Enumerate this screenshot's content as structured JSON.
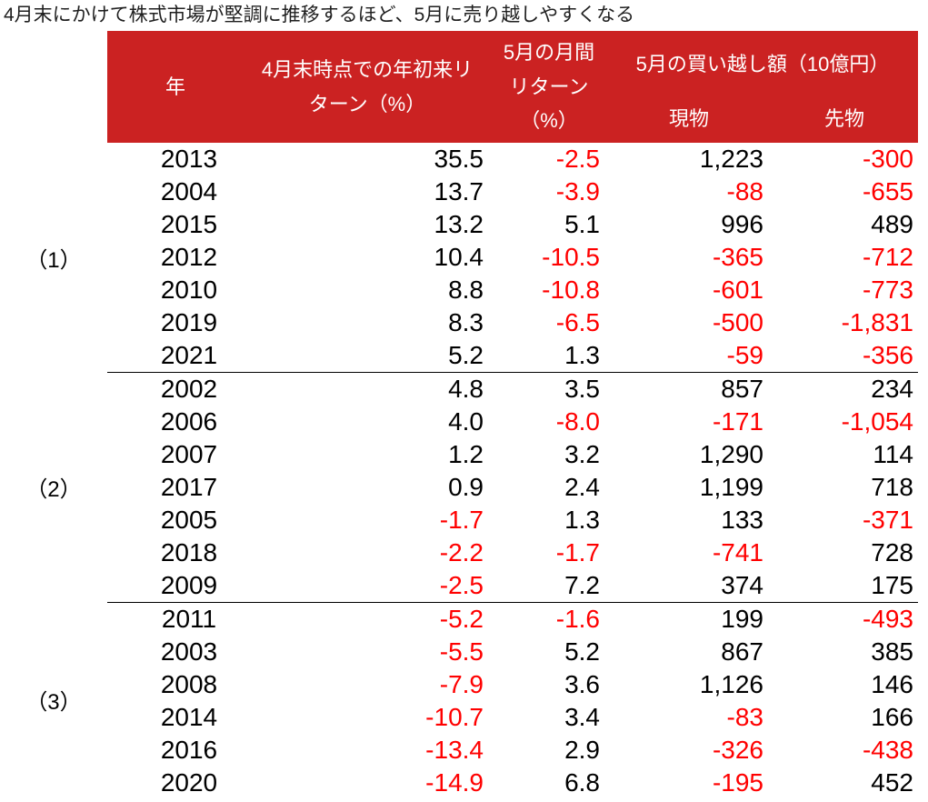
{
  "colors": {
    "header_bg": "#CB2222",
    "header_text": "#FFFFFF",
    "negative_value": "#FF0000",
    "positive_value": "#000000",
    "group_separator": "#000000"
  },
  "chart_data": {
    "type": "table",
    "title": "4月末にかけて株式市場が堅調に推移するほど、5月に売り越しやすくなる",
    "columns": [
      "年",
      "4月末時点での年初来リターン（%）",
      "5月の月間リターン（%）",
      "5月の買い越し額（10億円） 現物",
      "5月の買い越し額（10億円） 先物"
    ],
    "header": {
      "year": "年",
      "ytd_return": "4月末時点での年初来リ\nターン（%）",
      "may_return": "5月の月間\nリターン\n（%）",
      "net_buying": "5月の買い越し額（10億円）",
      "spot": "現物",
      "futures": "先物"
    },
    "layout": {
      "negative_values_in_red": true,
      "groups_separated_by_line": true
    },
    "groups": [
      {
        "label": "（1）",
        "rows": [
          {
            "year": "2013",
            "ytd": "35.5",
            "may": "-2.5",
            "spot": "1,223",
            "futures": "-300"
          },
          {
            "year": "2004",
            "ytd": "13.7",
            "may": "-3.9",
            "spot": "-88",
            "futures": "-655"
          },
          {
            "year": "2015",
            "ytd": "13.2",
            "may": "5.1",
            "spot": "996",
            "futures": "489"
          },
          {
            "year": "2012",
            "ytd": "10.4",
            "may": "-10.5",
            "spot": "-365",
            "futures": "-712"
          },
          {
            "year": "2010",
            "ytd": "8.8",
            "may": "-10.8",
            "spot": "-601",
            "futures": "-773"
          },
          {
            "year": "2019",
            "ytd": "8.3",
            "may": "-6.5",
            "spot": "-500",
            "futures": "-1,831"
          },
          {
            "year": "2021",
            "ytd": "5.2",
            "may": "1.3",
            "spot": "-59",
            "futures": "-356"
          }
        ]
      },
      {
        "label": "（2）",
        "rows": [
          {
            "year": "2002",
            "ytd": "4.8",
            "may": "3.5",
            "spot": "857",
            "futures": "234"
          },
          {
            "year": "2006",
            "ytd": "4.0",
            "may": "-8.0",
            "spot": "-171",
            "futures": "-1,054"
          },
          {
            "year": "2007",
            "ytd": "1.2",
            "may": "3.2",
            "spot": "1,290",
            "futures": "114"
          },
          {
            "year": "2017",
            "ytd": "0.9",
            "may": "2.4",
            "spot": "1,199",
            "futures": "718"
          },
          {
            "year": "2005",
            "ytd": "-1.7",
            "may": "1.3",
            "spot": "133",
            "futures": "-371"
          },
          {
            "year": "2018",
            "ytd": "-2.2",
            "may": "-1.7",
            "spot": "-741",
            "futures": "728"
          },
          {
            "year": "2009",
            "ytd": "-2.5",
            "may": "7.2",
            "spot": "374",
            "futures": "175"
          }
        ]
      },
      {
        "label": "（3）",
        "rows": [
          {
            "year": "2011",
            "ytd": "-5.2",
            "may": "-1.6",
            "spot": "199",
            "futures": "-493"
          },
          {
            "year": "2003",
            "ytd": "-5.5",
            "may": "5.2",
            "spot": "867",
            "futures": "385"
          },
          {
            "year": "2008",
            "ytd": "-7.9",
            "may": "3.6",
            "spot": "1,126",
            "futures": "146"
          },
          {
            "year": "2014",
            "ytd": "-10.7",
            "may": "3.4",
            "spot": "-83",
            "futures": "166"
          },
          {
            "year": "2016",
            "ytd": "-13.4",
            "may": "2.9",
            "spot": "-326",
            "futures": "-438"
          },
          {
            "year": "2020",
            "ytd": "-14.9",
            "may": "6.8",
            "spot": "-195",
            "futures": "452"
          }
        ]
      }
    ]
  }
}
